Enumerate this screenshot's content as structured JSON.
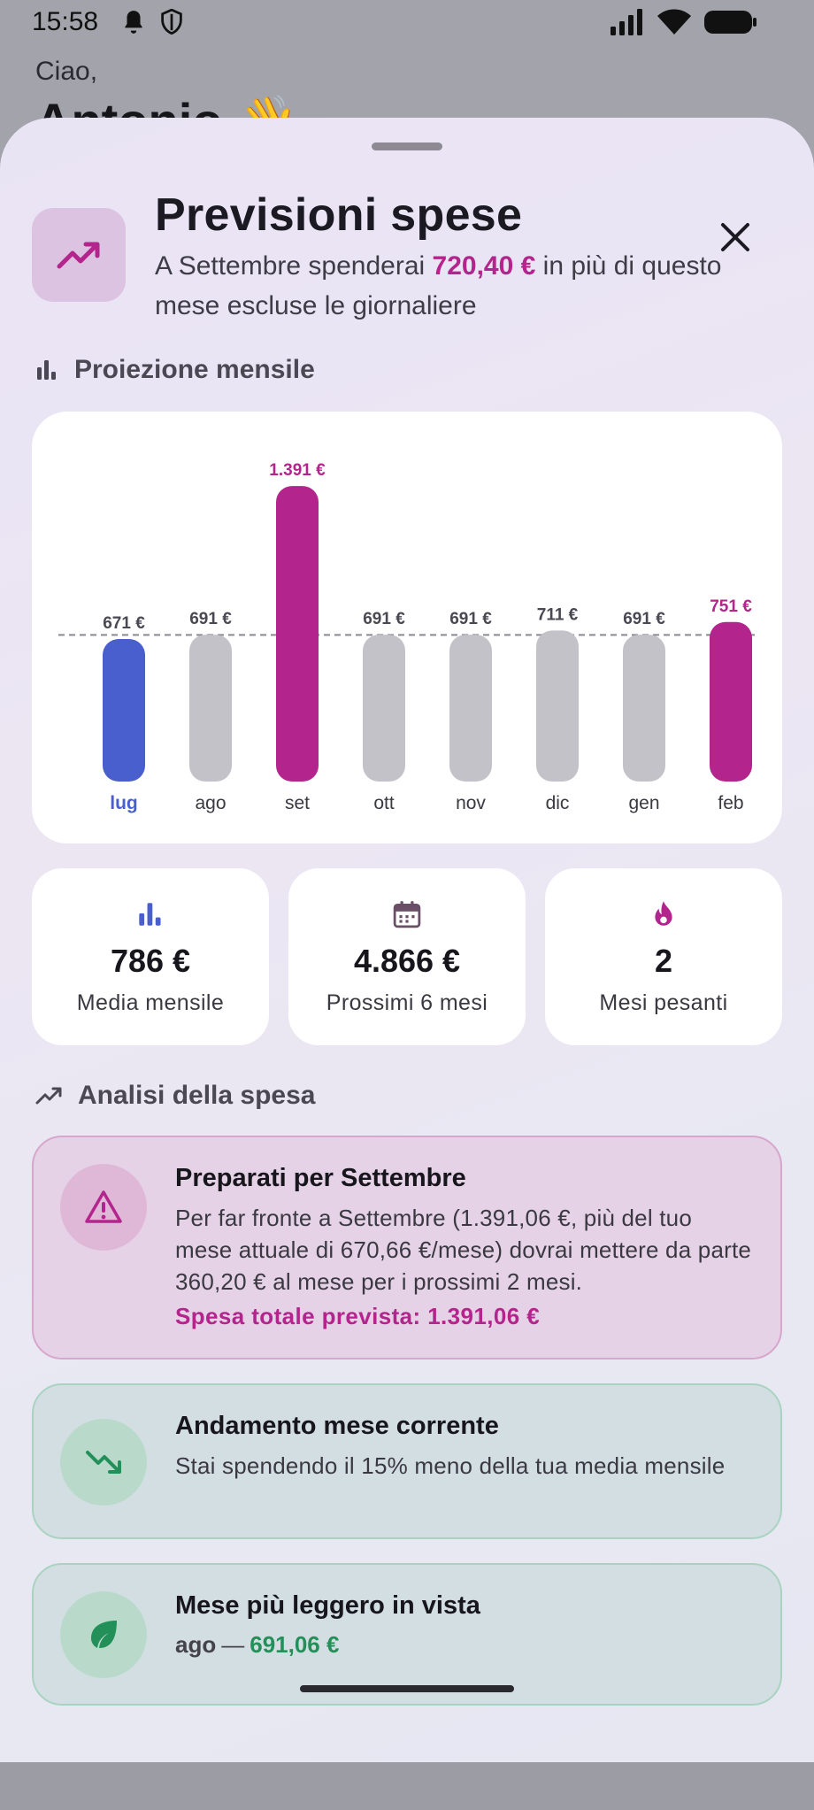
{
  "status_bar": {
    "time": "15:58"
  },
  "background": {
    "greeting": "Ciao,",
    "name": "Antonio 👋"
  },
  "header": {
    "title": "Previsioni spese",
    "subtitle_pre": "A Settembre spenderai ",
    "subtitle_amount": "720,40 €",
    "subtitle_post": " in più di questo mese escluse le giornaliere",
    "accent_color": "#b3258d",
    "icon": "trending-up-icon"
  },
  "section_projection": {
    "label": "Proiezione mensile",
    "icon": "bar-chart-icon"
  },
  "chart_data": {
    "type": "bar",
    "categories": [
      "lug",
      "ago",
      "set",
      "ott",
      "nov",
      "dic",
      "gen",
      "feb"
    ],
    "values": [
      671,
      691,
      1391,
      691,
      691,
      711,
      691,
      751
    ],
    "value_labels": [
      "671 €",
      "691 €",
      "1.391 €",
      "691 €",
      "691 €",
      "711 €",
      "691 €",
      "751 €"
    ],
    "highlight": [
      "current",
      "normal",
      "heavy",
      "normal",
      "normal",
      "normal",
      "normal",
      "heavy"
    ],
    "colors": {
      "current": "#4a5fce",
      "normal": "#c2c2c8",
      "heavy": "#b3258d"
    },
    "reference_line": 690,
    "ylim": [
      0,
      1400
    ]
  },
  "stats": [
    {
      "icon": "bar-chart-icon",
      "value": "786 €",
      "label": "Media mensile",
      "color": "#4a5fce"
    },
    {
      "icon": "calendar-icon",
      "value": "4.866 €",
      "label": "Prossimi 6 mesi",
      "color": "#6a4f66"
    },
    {
      "icon": "flame-icon",
      "value": "2",
      "label": "Mesi pesanti",
      "color": "#b3258d"
    }
  ],
  "section_analysis": {
    "label": "Analisi della spesa",
    "icon": "trending-up-icon"
  },
  "cards": {
    "alert": {
      "icon": "warning-icon",
      "title": "Preparati per Settembre",
      "text": "Per far fronte a Settembre (1.391,06 €, più del tuo mese attuale di 670,66 €/mese) dovrai mettere da parte 360,20 € al mese per i prossimi 2 mesi.",
      "highlight": "Spesa totale prevista: 1.391,06 €"
    },
    "trend": {
      "icon": "trending-down-icon",
      "title": "Andamento mese corrente",
      "text": "Stai spendendo il 15% meno della tua media mensile"
    },
    "light": {
      "icon": "leaf-icon",
      "title": "Mese più leggero in vista",
      "month": "ago",
      "dash": "—",
      "value": "691,06 €"
    }
  }
}
